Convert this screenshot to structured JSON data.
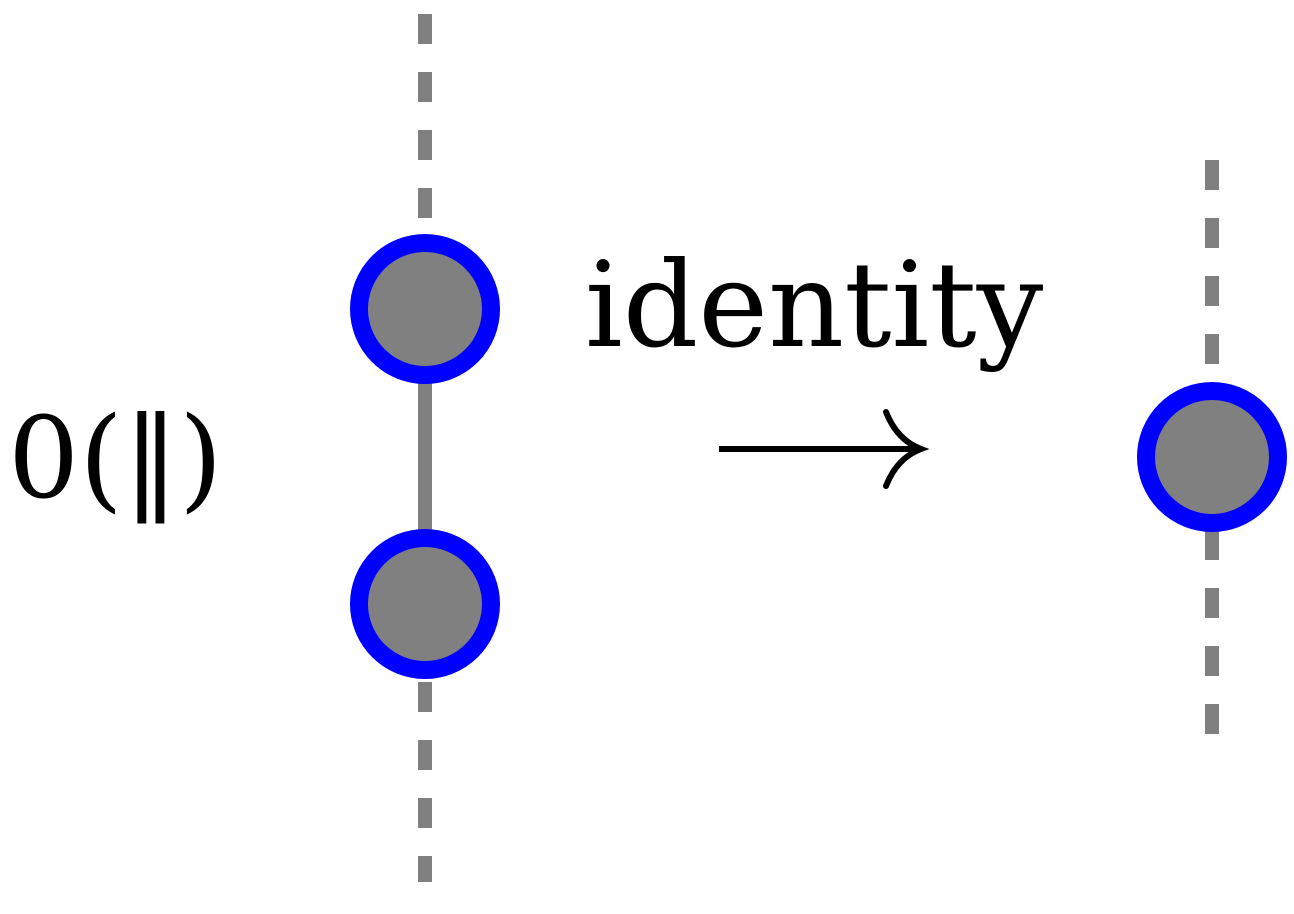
{
  "diagram": {
    "left_label": "0(‖)",
    "arrow_label": "identity",
    "colors": {
      "node_fill": "#808080",
      "node_stroke": "#0000ff",
      "line": "#808080",
      "arrow": "#000000",
      "text": "#000000"
    }
  }
}
